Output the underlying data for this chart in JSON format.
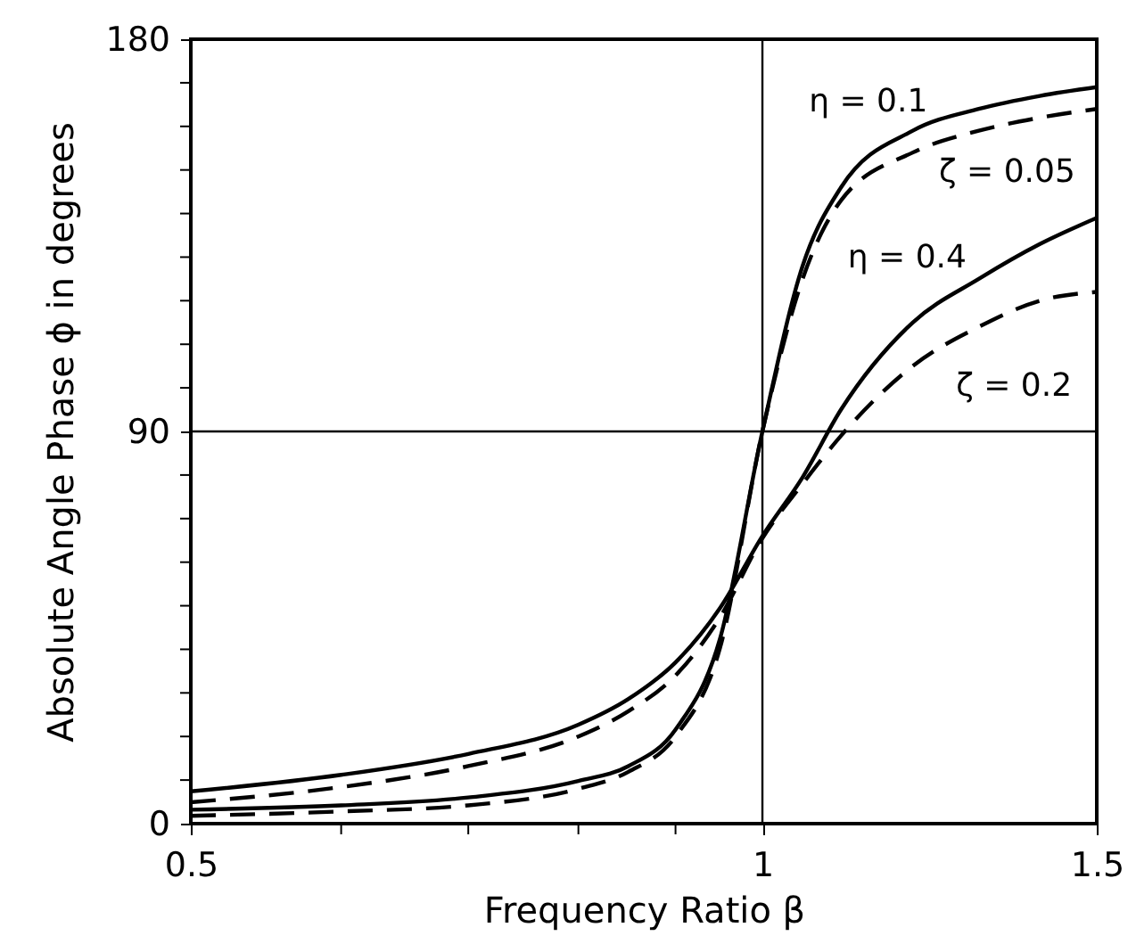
{
  "chart_data": {
    "type": "line",
    "xlabel": "Frequency Ratio  β",
    "ylabel": "Absolute Angle Phase ϕ in degrees",
    "log": "x",
    "xlim": [
      0.5,
      1.5
    ],
    "ylim": [
      0,
      180
    ],
    "xticks": [
      0.5,
      {
        "value": 0.6,
        "label": null
      },
      {
        "value": 0.7,
        "label": null
      },
      {
        "value": 0.8,
        "label": null
      },
      {
        "value": 0.9,
        "label": null
      },
      1,
      1.5
    ],
    "yticks": [
      0,
      {
        "value": 10,
        "label": null
      },
      {
        "value": 20,
        "label": null
      },
      {
        "value": 30,
        "label": null
      },
      {
        "value": 40,
        "label": null
      },
      {
        "value": 50,
        "label": null
      },
      {
        "value": 60,
        "label": null
      },
      {
        "value": 70,
        "label": null
      },
      {
        "value": 80,
        "label": null
      },
      90,
      {
        "value": 100,
        "label": null
      },
      {
        "value": 110,
        "label": null
      },
      {
        "value": 120,
        "label": null
      },
      {
        "value": 130,
        "label": null
      },
      {
        "value": 140,
        "label": null
      },
      {
        "value": 150,
        "label": null
      },
      {
        "value": 160,
        "label": null
      },
      {
        "value": 170,
        "label": null
      },
      180
    ],
    "grid": false,
    "marker": "none",
    "x": [
      0.5,
      0.6,
      0.7,
      0.8,
      0.85,
      0.9,
      0.95,
      1.0,
      1.05,
      1.1,
      1.2,
      1.3,
      1.4,
      1.5
    ],
    "series": [
      {
        "color": "#000000",
        "line_style": "solid",
        "values": [
          3.2,
          4.2,
          6,
          9.8,
          13.2,
          21.6,
          42.5,
          90,
          128,
          146,
          159,
          164,
          167,
          169
        ]
      },
      {
        "color": "#000000",
        "line_style": "dashed",
        "values": [
          1.8,
          2.8,
          4.2,
          8,
          11.9,
          20,
          40.4,
          90,
          125,
          143,
          154,
          159,
          162,
          164
        ]
      },
      {
        "color": "#000000",
        "line_style": "solid",
        "values": [
          7.4,
          11.2,
          16,
          22.7,
          28.6,
          37,
          49.5,
          66,
          79.5,
          95,
          115,
          125,
          133,
          139
        ]
      },
      {
        "color": "#000000",
        "line_style": "dashed",
        "values": [
          4.9,
          8.4,
          13.2,
          20,
          25.8,
          34,
          47.4,
          65.5,
          78,
          89,
          105,
          114,
          120,
          122
        ]
      }
    ],
    "annotations": [
      {
        "text": "η = 0.1",
        "x": 1.137,
        "y": 152
      },
      {
        "text": "ζ = 0.05",
        "x": 1.311,
        "y": 160
      },
      {
        "text": "η = 0.4",
        "x": 1.197,
        "y": 115
      },
      {
        "text": "ζ = 0.2",
        "x": 1.345,
        "y": 117
      }
    ],
    "ref_lines": [
      {
        "axis": "x",
        "value": 1,
        "label": null
      },
      {
        "axis": "y",
        "value": 90,
        "label": null
      }
    ]
  }
}
